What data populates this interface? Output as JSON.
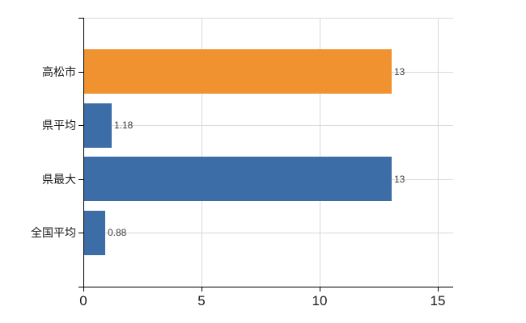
{
  "chart_data": {
    "type": "bar",
    "orientation": "horizontal",
    "title": "",
    "categories": [
      "高松市",
      "県平均",
      "県最大",
      "全国平均"
    ],
    "values": [
      13,
      1.18,
      13,
      0.88
    ],
    "value_labels": [
      "13",
      "1.18",
      "13",
      "0.88"
    ],
    "bar_colors": [
      "#f0922f",
      "#3d6da6",
      "#3d6da6",
      "#3d6da6"
    ],
    "xlabel": "",
    "ylabel": "",
    "xlim": [
      0,
      15.65
    ],
    "x_ticks": [
      0,
      5,
      10,
      15
    ],
    "x_tick_labels": [
      "0",
      "5",
      "10",
      "15"
    ],
    "grid": true,
    "legend": false
  },
  "colors": {
    "background": "#ffffff",
    "bar_orange": "#f0922f",
    "bar_blue": "#3d6da6",
    "gridline": "#d9d9d9",
    "axis": "#000000",
    "category_label": "#1a1a1a",
    "x_tick_label": "#1a1a1a",
    "value_label": "#3f3f3f"
  }
}
